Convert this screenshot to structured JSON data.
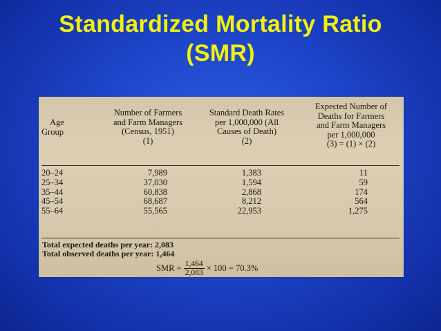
{
  "slide": {
    "title_line1": "Standardized Mortality Ratio",
    "title_line2": "(SMR)",
    "title_color": "#f2f20a",
    "background_color": "#1d44c8"
  },
  "table": {
    "headers": {
      "age": [
        "Age",
        "Group"
      ],
      "col1": [
        "Number of Farmers",
        "and Farm Managers",
        "(Census, 1951)",
        "(1)"
      ],
      "col2": [
        "Standard Death Rates",
        "per 1,000,000 (All",
        "Causes of Death)",
        "(2)"
      ],
      "col3": [
        "Expected Number of",
        "Deaths for Farmers",
        "and Farm Managers",
        "per 1,000,000",
        "(3) = (1) × (2)"
      ]
    },
    "rows": [
      {
        "age": "20–24",
        "farmers": "7,989",
        "rate": "1,383",
        "expected": "11"
      },
      {
        "age": "25–34",
        "farmers": "37,030",
        "rate": "1,594",
        "expected": "59"
      },
      {
        "age": "35–44",
        "farmers": "60,838",
        "rate": "2,868",
        "expected": "174"
      },
      {
        "age": "45–54",
        "farmers": "68,687",
        "rate": "8,212",
        "expected": "564"
      },
      {
        "age": "55–64",
        "farmers": "55,565",
        "rate": "22,953",
        "expected": "1,275"
      }
    ],
    "total_expected": "Total expected deaths per year: 2,083",
    "total_observed": "Total observed deaths per year: 1,464",
    "formula": {
      "lhs": "SMR =",
      "numerator": "1,464",
      "denominator": "2,083",
      "rest": "× 100 = 70.3%"
    }
  }
}
